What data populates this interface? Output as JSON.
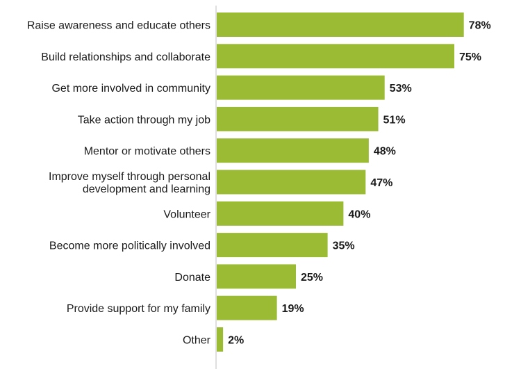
{
  "chart_data": {
    "type": "bar",
    "orientation": "horizontal",
    "categories": [
      "Raise awareness and educate others",
      "Build relationships and collaborate",
      "Get more involved in community",
      "Take action through my job",
      "Mentor or motivate others",
      "Improve myself through personal development and learning",
      "Volunteer",
      "Become more politically involved",
      "Donate",
      "Provide support for my family",
      "Other"
    ],
    "category_lines": [
      [
        "Raise awareness and educate others"
      ],
      [
        "Build relationships and collaborate"
      ],
      [
        "Get more involved in community"
      ],
      [
        "Take action through my job"
      ],
      [
        "Mentor or motivate others"
      ],
      [
        "Improve myself through personal",
        "development and learning"
      ],
      [
        "Volunteer"
      ],
      [
        "Become more politically involved"
      ],
      [
        "Donate"
      ],
      [
        "Provide support for my family"
      ],
      [
        "Other"
      ]
    ],
    "values": [
      78,
      75,
      53,
      51,
      48,
      47,
      40,
      35,
      25,
      19,
      2
    ],
    "value_labels": [
      "78%",
      "75%",
      "53%",
      "51%",
      "48%",
      "47%",
      "40%",
      "35%",
      "25%",
      "19%",
      "2%"
    ],
    "title": "",
    "xlabel": "",
    "ylabel": "",
    "xlim": [
      0,
      100
    ],
    "grid": false,
    "legend": "none",
    "colors": {
      "bar": "#9BBB35",
      "axis": "#BFBFBF",
      "text": "#1a1a1a"
    }
  }
}
